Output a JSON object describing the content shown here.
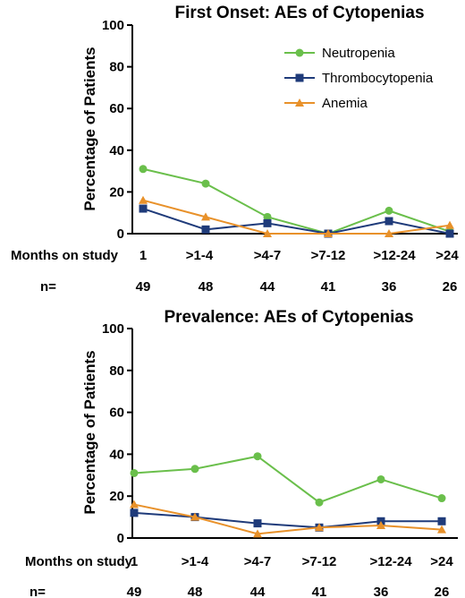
{
  "chart_data": [
    {
      "type": "line",
      "title": "First Onset: AEs of Cytopenias",
      "ylabel": "Percentage of  Patients",
      "ylim": [
        0,
        100
      ],
      "yticks": [
        "0",
        "20",
        "40",
        "60",
        "80",
        "100"
      ],
      "row_label": "Months on study",
      "categories": [
        "1",
        ">1-4",
        ">4-7",
        ">7-12",
        ">12-24",
        ">24"
      ],
      "n_label": "n=",
      "n_values": [
        "49",
        "48",
        "44",
        "41",
        "36",
        "26"
      ],
      "legend": "top-right",
      "series": [
        {
          "name": "Neutropenia",
          "color": "#6abf4b",
          "marker": "circle",
          "values": [
            31,
            24,
            8,
            0,
            11,
            1
          ]
        },
        {
          "name": "Thrombocytopenia",
          "color": "#1f3b7a",
          "marker": "square",
          "values": [
            12,
            2,
            5,
            0,
            6,
            0
          ]
        },
        {
          "name": "Anemia",
          "color": "#e8912a",
          "marker": "triangle",
          "values": [
            16,
            8,
            0,
            0,
            0,
            4
          ]
        }
      ]
    },
    {
      "type": "line",
      "title": "Prevalence: AEs of Cytopenias",
      "ylabel": "Percentage of  Patients",
      "ylim": [
        0,
        100
      ],
      "yticks": [
        "0",
        "20",
        "40",
        "60",
        "80",
        "100"
      ],
      "row_label": "Months on study",
      "categories": [
        "1",
        ">1-4",
        ">4-7",
        ">7-12",
        ">12-24",
        ">24"
      ],
      "n_label": "n=",
      "n_values": [
        "49",
        "48",
        "44",
        "41",
        "36",
        "26"
      ],
      "series": [
        {
          "name": "Neutropenia",
          "color": "#6abf4b",
          "marker": "circle",
          "values": [
            31,
            33,
            39,
            17,
            28,
            19
          ]
        },
        {
          "name": "Thrombocytopenia",
          "color": "#1f3b7a",
          "marker": "square",
          "values": [
            12,
            10,
            7,
            5,
            8,
            8
          ]
        },
        {
          "name": "Anemia",
          "color": "#e8912a",
          "marker": "triangle",
          "values": [
            16,
            10,
            2,
            5,
            6,
            4
          ]
        }
      ]
    }
  ]
}
